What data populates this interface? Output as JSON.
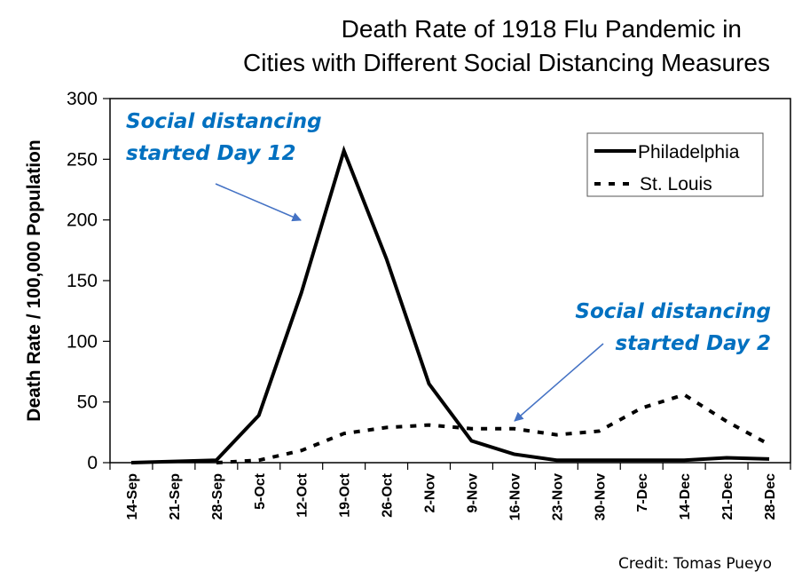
{
  "chart_data": {
    "type": "line",
    "title": "Death Rate of 1918 Flu Pandemic in Cities with Different Social Distancing Measures",
    "title_lines": [
      "Death Rate of 1918 Flu Pandemic in",
      "Cities with Different Social Distancing Measures"
    ],
    "xlabel": "",
    "ylabel": "Death Rate / 100,000 Population",
    "ylim": [
      0,
      300
    ],
    "yticks": [
      "0",
      "50",
      "100",
      "150",
      "200",
      "250",
      "300"
    ],
    "ytick_values": [
      0,
      50,
      100,
      150,
      200,
      250,
      300
    ],
    "categories": [
      "14-Sep",
      "21-Sep",
      "28-Sep",
      "5-Oct",
      "12-Oct",
      "19-Oct",
      "26-Oct",
      "2-Nov",
      "9-Nov",
      "16-Nov",
      "23-Nov",
      "30-Nov",
      "7-Dec",
      "14-Dec",
      "21-Dec",
      "28-Dec"
    ],
    "grid": false,
    "legend_position": "top-right",
    "series": [
      {
        "name": "Philadelphia",
        "style": "solid",
        "color": "#000000",
        "values": [
          0,
          1,
          2,
          39,
          140,
          257,
          168,
          65,
          18,
          7,
          2,
          2,
          2,
          2,
          4,
          3
        ]
      },
      {
        "name": "St. Louis",
        "style": "dashed",
        "color": "#000000",
        "values": [
          null,
          null,
          0,
          2,
          10,
          24,
          29,
          31,
          28,
          28,
          23,
          26,
          45,
          56,
          34,
          15
        ]
      }
    ],
    "annotations": [
      {
        "lines": [
          "Social distancing",
          "started Day 12"
        ],
        "color": "#0070C0",
        "arrow_color": "#4472C4",
        "target_category": "12-Oct",
        "target_series": "Philadelphia"
      },
      {
        "lines": [
          "Social distancing",
          "started Day 2"
        ],
        "color": "#0070C0",
        "arrow_color": "#4472C4",
        "target_category": "16-Nov",
        "target_series": "St. Louis"
      }
    ],
    "credit": "Credit: Tomas Pueyo"
  }
}
